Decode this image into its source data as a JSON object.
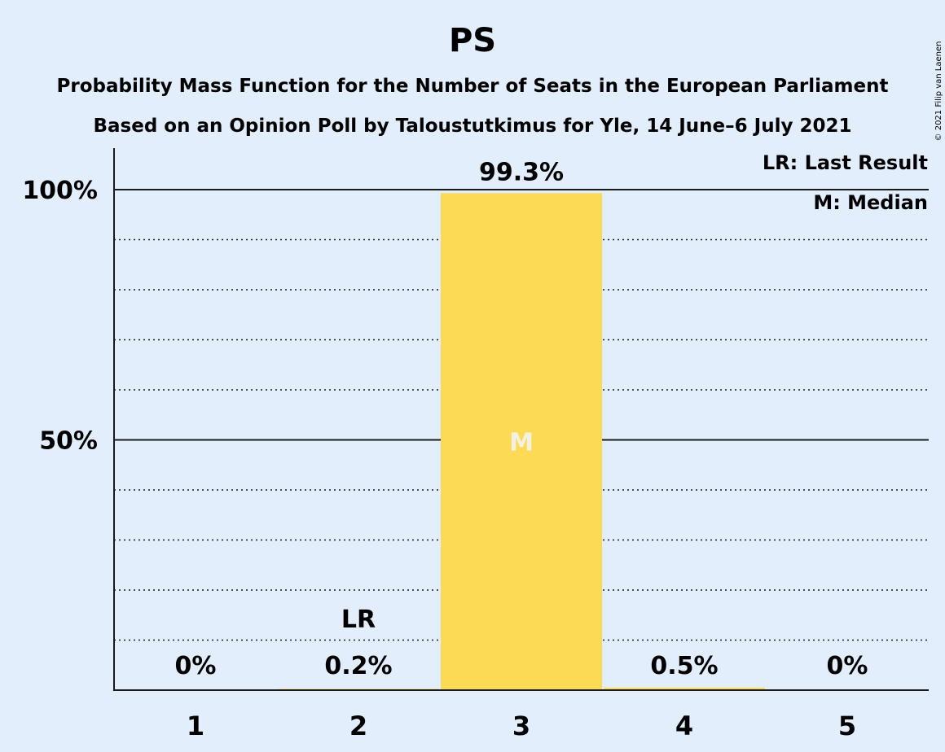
{
  "chart_data": {
    "type": "bar",
    "title": "PS",
    "subtitle_1": "Probability Mass Function for the Number of Seats in the European Parliament",
    "subtitle_2": "Based on an Opinion Poll by Taloustutkimus for Yle, 14 June–6 July 2021",
    "categories": [
      "1",
      "2",
      "3",
      "4",
      "5"
    ],
    "values": [
      0,
      0.2,
      99.3,
      0.5,
      0
    ],
    "value_labels": [
      "0%",
      "0.2%",
      "99.3%",
      "0.5%",
      "0%"
    ],
    "y_ticks": [
      {
        "value": 50,
        "label": "50%"
      },
      {
        "value": 100,
        "label": "100%"
      }
    ],
    "ylim": [
      0,
      100
    ],
    "minor_grid_step": 10,
    "last_result": {
      "category": "2",
      "label": "LR"
    },
    "median": {
      "category": "3",
      "label": "M"
    },
    "legend": [
      "LR: Last Result",
      "M: Median"
    ],
    "legend_position": "top-right",
    "copyright": "© 2021 Filip van Laenen",
    "colors": {
      "background": "#e3eefd",
      "bar": "#fcda55",
      "text": "#1a1a1a",
      "median_label": "#f4f1e4"
    }
  }
}
